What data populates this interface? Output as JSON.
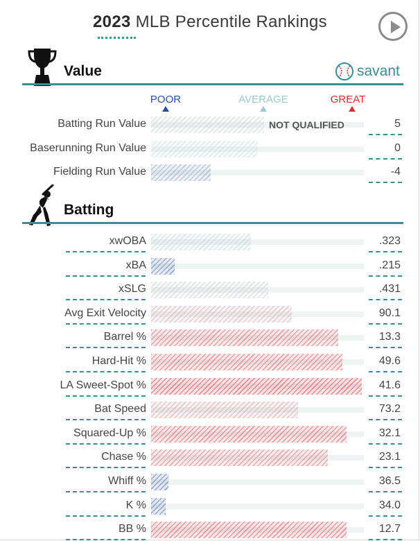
{
  "header": {
    "year": "2023",
    "title": "MLB Percentile Rankings",
    "play_icon": "play-icon"
  },
  "brand": {
    "name": "savant",
    "icon": "baseball-icon"
  },
  "scale": {
    "poor": "POOR",
    "average": "AVERAGE",
    "great": "GREAT"
  },
  "sections": {
    "value": {
      "title": "Value",
      "icon": "trophy-icon",
      "rows": [
        {
          "label": "Batting Run Value",
          "value": "5",
          "percentile": 53,
          "note": "NOT QUALIFIED"
        },
        {
          "label": "Baserunning Run Value",
          "value": "0",
          "percentile": 50
        },
        {
          "label": "Fielding Run Value",
          "value": "-4",
          "percentile": 28
        }
      ]
    },
    "batting": {
      "title": "Batting",
      "icon": "batter-icon",
      "rows": [
        {
          "label": "xwOBA",
          "value": ".323",
          "percentile": 47
        },
        {
          "label": "xBA",
          "value": ".215",
          "percentile": 11
        },
        {
          "label": "xSLG",
          "value": ".431",
          "percentile": 55
        },
        {
          "label": "Avg Exit Velocity",
          "value": "90.1",
          "percentile": 66
        },
        {
          "label": "Barrel %",
          "value": "13.3",
          "percentile": 88
        },
        {
          "label": "Hard-Hit %",
          "value": "49.6",
          "percentile": 90
        },
        {
          "label": "LA Sweet-Spot %",
          "value": "41.6",
          "percentile": 99
        },
        {
          "label": "Bat Speed",
          "value": "73.2",
          "percentile": 69
        },
        {
          "label": "Squared-Up %",
          "value": "32.1",
          "percentile": 92
        },
        {
          "label": "Chase %",
          "value": "23.1",
          "percentile": 83
        },
        {
          "label": "Whiff %",
          "value": "36.5",
          "percentile": 8
        },
        {
          "label": "K %",
          "value": "34.0",
          "percentile": 7
        },
        {
          "label": "BB %",
          "value": "12.7",
          "percentile": 92
        }
      ]
    }
  },
  "colors": {
    "poor": "#2b4c9b",
    "average": "#9fc8c8",
    "great": "#d32f2f",
    "accent": "#3b8d92"
  }
}
